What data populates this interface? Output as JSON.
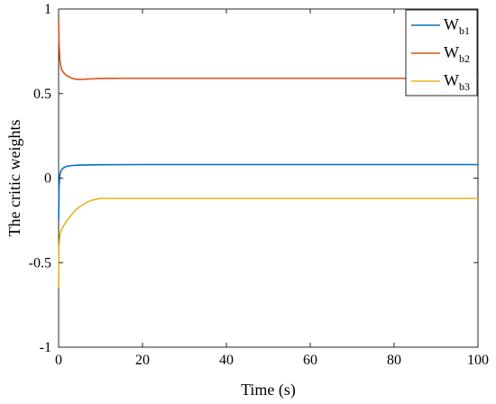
{
  "chart_data": {
    "type": "line",
    "title": "",
    "xlabel": "Time (s)",
    "ylabel": "The critic weights",
    "xlim": [
      0,
      100
    ],
    "ylim": [
      -1,
      1
    ],
    "xticks": [
      0,
      20,
      40,
      60,
      80,
      100
    ],
    "yticks": [
      -1,
      -0.5,
      0,
      0.5,
      1
    ],
    "ytick_labels": [
      "-1",
      "-0.5",
      "0",
      "0.5",
      "1"
    ],
    "legend_position": "top-right",
    "series": [
      {
        "name": "W",
        "name_sub": "b1",
        "color": "#0072BD",
        "x": [
          0,
          0.1,
          0.3,
          0.6,
          1,
          1.5,
          2,
          3,
          5,
          10,
          20,
          40,
          60,
          80,
          100
        ],
        "y": [
          -0.25,
          -0.05,
          0.02,
          0.045,
          0.058,
          0.065,
          0.07,
          0.074,
          0.077,
          0.079,
          0.08,
          0.08,
          0.08,
          0.08,
          0.08
        ]
      },
      {
        "name": "W",
        "name_sub": "b2",
        "color": "#D95319",
        "x": [
          0,
          0.1,
          0.3,
          0.6,
          1,
          1.5,
          2,
          3,
          4,
          5,
          6,
          8,
          10,
          15,
          20,
          40,
          60,
          80,
          100
        ],
        "y": [
          0.94,
          0.8,
          0.7,
          0.65,
          0.63,
          0.615,
          0.605,
          0.592,
          0.585,
          0.583,
          0.584,
          0.587,
          0.589,
          0.59,
          0.59,
          0.59,
          0.59,
          0.59,
          0.59
        ]
      },
      {
        "name": "W",
        "name_sub": "b3",
        "color": "#EDB120",
        "x": [
          0,
          0.1,
          0.3,
          0.6,
          1,
          1.5,
          2,
          3,
          4,
          5,
          6,
          7,
          8,
          9,
          10,
          15,
          20,
          40,
          60,
          80,
          100
        ],
        "y": [
          -0.65,
          -0.4,
          -0.34,
          -0.31,
          -0.29,
          -0.27,
          -0.25,
          -0.22,
          -0.19,
          -0.17,
          -0.155,
          -0.14,
          -0.13,
          -0.125,
          -0.12,
          -0.12,
          -0.12,
          -0.12,
          -0.12,
          -0.12,
          -0.12
        ]
      }
    ]
  }
}
